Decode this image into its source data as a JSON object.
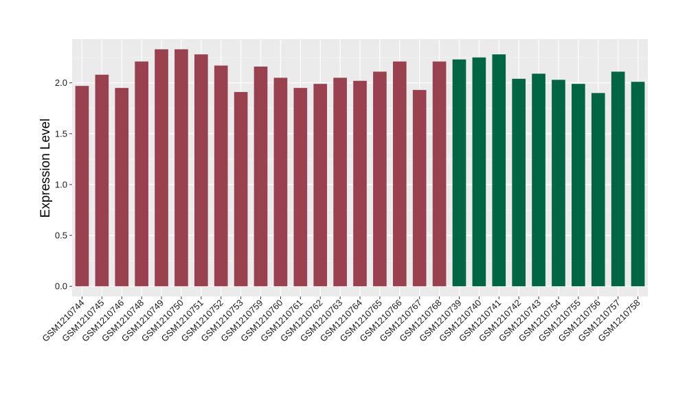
{
  "chart_data": {
    "type": "bar",
    "title": "",
    "xlabel": "",
    "ylabel": "Expression Level",
    "ylim": [
      -0.1,
      2.43
    ],
    "yticks": [
      0.0,
      0.5,
      1.0,
      1.5,
      2.0
    ],
    "ytick_labels": [
      "0.0",
      "0.5",
      "1.0",
      "1.5",
      "2.0"
    ],
    "grid": true,
    "legend": "none",
    "colors": {
      "group1": "#9a4150",
      "group2": "#006543",
      "panel_bg": "#ebebeb",
      "grid_major": "#ffffff",
      "tick_text": "#1a1a1a"
    },
    "categories": [
      "GSM1210744",
      "GSM1210745",
      "GSM1210746",
      "GSM1210748",
      "GSM1210749",
      "GSM1210750",
      "GSM1210751",
      "GSM1210752",
      "GSM1210753",
      "GSM1210759",
      "GSM1210760",
      "GSM1210761",
      "GSM1210762",
      "GSM1210763",
      "GSM1210764",
      "GSM1210765",
      "GSM1210766",
      "GSM1210767",
      "GSM1210768",
      "GSM1210739",
      "GSM1210740",
      "GSM1210741",
      "GSM1210742",
      "GSM1210743",
      "GSM1210754",
      "GSM1210755",
      "GSM1210756",
      "GSM1210757",
      "GSM1210758"
    ],
    "values": [
      1.97,
      2.08,
      1.95,
      2.21,
      2.33,
      2.33,
      2.28,
      2.17,
      1.91,
      2.16,
      2.05,
      1.95,
      1.99,
      2.05,
      2.02,
      2.11,
      2.21,
      1.93,
      2.21,
      2.23,
      2.25,
      2.28,
      2.04,
      2.09,
      2.03,
      1.99,
      1.9,
      2.11,
      2.01
    ],
    "groups": [
      1,
      1,
      1,
      1,
      1,
      1,
      1,
      1,
      1,
      1,
      1,
      1,
      1,
      1,
      1,
      1,
      1,
      1,
      1,
      2,
      2,
      2,
      2,
      2,
      2,
      2,
      2,
      2,
      2
    ]
  }
}
